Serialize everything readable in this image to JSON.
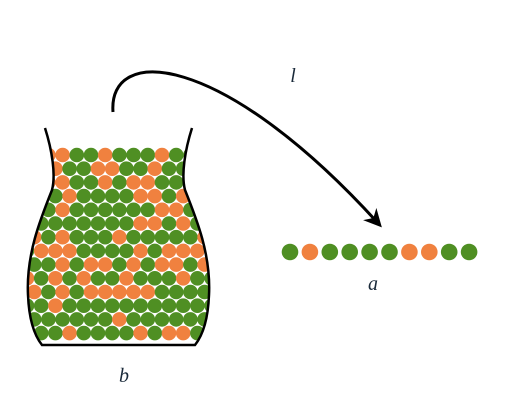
{
  "labels": {
    "arrow": "l",
    "row": "a",
    "jar": "b"
  }
}
